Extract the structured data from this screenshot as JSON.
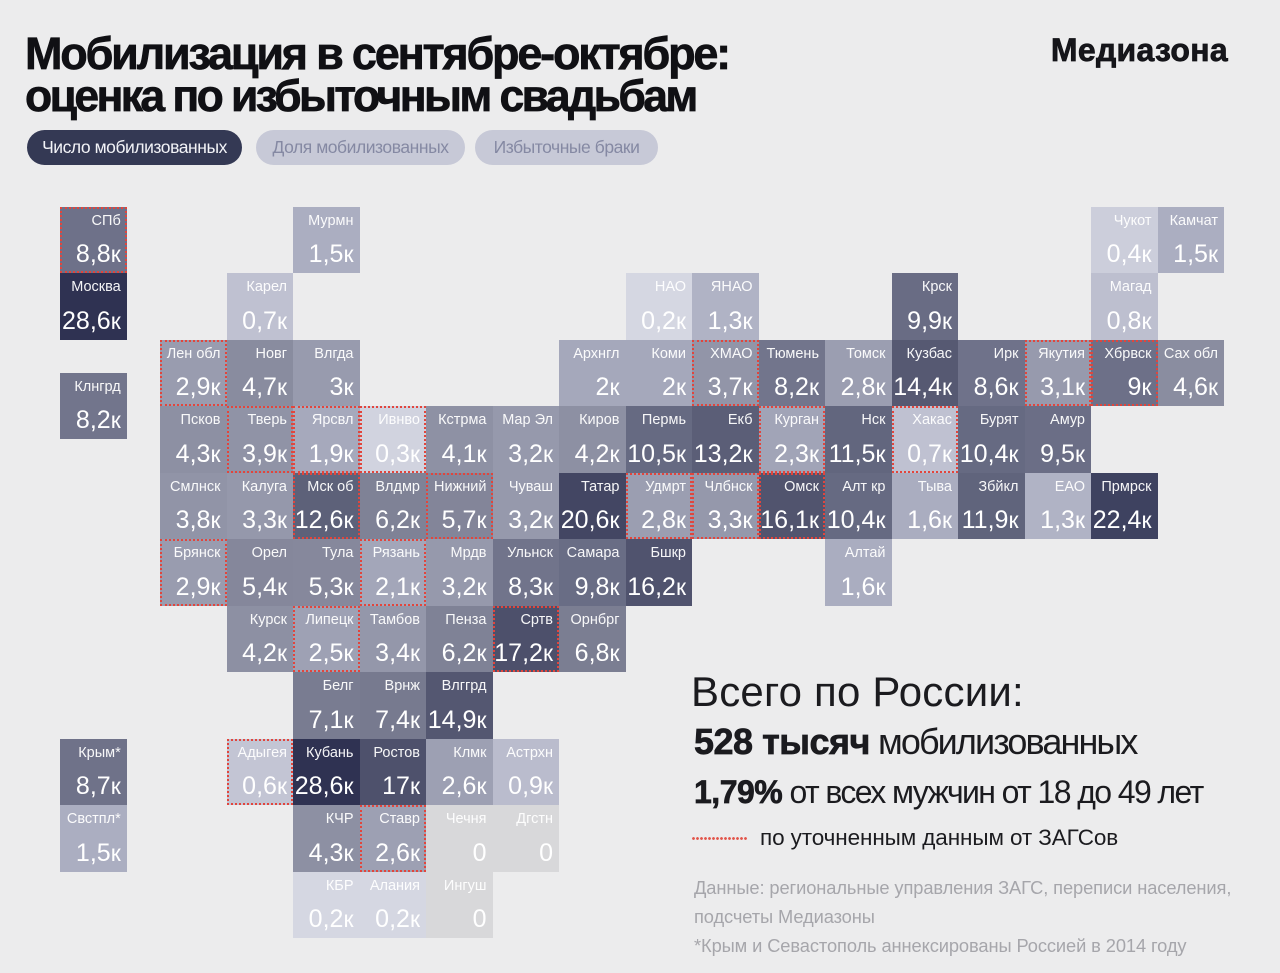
{
  "header": {
    "title_line1": "Мобилизация в сентябре-октябре:",
    "title_line2": "оценка по избыточным свадьбам",
    "logo": "Медиазона"
  },
  "tabs": [
    {
      "label": "Число мобилизованных",
      "active": true
    },
    {
      "label": "Доля мобилизованных",
      "active": false
    },
    {
      "label": "Избыточные браки",
      "active": false
    }
  ],
  "summary": {
    "title": "Всего по России:",
    "total_bold": "528 тысяч",
    "total_rest": " мобилизованных",
    "share_bold": "1,79%",
    "share_rest": " от всех мужчин от 18 до 49 лет",
    "zags_legend": "по уточненным данным от ЗАГСов"
  },
  "footnote": {
    "lines": [
      "Данные: региональные управления ЗАГС, переписи населения,",
      "подсчеты Медиазоны",
      "*Крым и Севастополь аннексированы Россией в 2014 году"
    ]
  },
  "colors": {
    "background": "#ececed",
    "tab_active_bg": "#343954",
    "tab_active_text": "#f2f3f7",
    "tab_inactive_bg": "#c7c9d7",
    "tab_inactive_text": "#8589a3",
    "refined_border": "#e2453c",
    "zero_tile": "#d8d8da",
    "tile_text": "#ffffff"
  },
  "chart_data": {
    "type": "tile-cartogram",
    "title": "Мобилизация в сентябре-октябре: оценка по избыточным свадьбам",
    "unit_suffix": "к",
    "value_scale_anchors": [
      [
        0.2,
        "#d5d7e2"
      ],
      [
        0.7,
        "#bfc1d1"
      ],
      [
        1.5,
        "#abaec1"
      ],
      [
        3.0,
        "#989bae"
      ],
      [
        4.7,
        "#898c9f"
      ],
      [
        5.4,
        "#85879b"
      ],
      [
        6.8,
        "#7b7e92"
      ],
      [
        8.8,
        "#6e7189"
      ],
      [
        10.5,
        "#666a82"
      ],
      [
        14.4,
        "#565972"
      ],
      [
        20.6,
        "#434663"
      ],
      [
        22.4,
        "#3e4260"
      ],
      [
        28.6,
        "#2f3252"
      ]
    ],
    "regions": [
      {
        "name": "СПб",
        "value": "8,8к",
        "num": 8.8,
        "row": 0,
        "col": -1.5,
        "refined": true
      },
      {
        "name": "Мурмн",
        "value": "1,5к",
        "num": 1.5,
        "row": 0,
        "col": 2,
        "refined": false
      },
      {
        "name": "Чукот",
        "value": "0,4к",
        "num": 0.4,
        "row": 0,
        "col": 14,
        "refined": false
      },
      {
        "name": "Камчат",
        "value": "1,5к",
        "num": 1.5,
        "row": 0,
        "col": 15,
        "refined": false
      },
      {
        "name": "Москва",
        "value": "28,6к",
        "num": 28.6,
        "row": 1,
        "col": -1.5,
        "refined": false
      },
      {
        "name": "Карел",
        "value": "0,7к",
        "num": 0.7,
        "row": 1,
        "col": 1,
        "refined": false
      },
      {
        "name": "НАО",
        "value": "0,2к",
        "num": 0.2,
        "row": 1,
        "col": 7,
        "refined": false
      },
      {
        "name": "ЯНАО",
        "value": "1,3к",
        "num": 1.3,
        "row": 1,
        "col": 8,
        "refined": false
      },
      {
        "name": "Крск",
        "value": "9,9к",
        "num": 9.9,
        "row": 1,
        "col": 11,
        "refined": false
      },
      {
        "name": "Магад",
        "value": "0,8к",
        "num": 0.8,
        "row": 1,
        "col": 14,
        "refined": false
      },
      {
        "name": "Лен обл",
        "value": "2,9к",
        "num": 2.9,
        "row": 2,
        "col": 0,
        "refined": true
      },
      {
        "name": "Новг",
        "value": "4,7к",
        "num": 4.7,
        "row": 2,
        "col": 1,
        "refined": false
      },
      {
        "name": "Влгда",
        "value": "3к",
        "num": 3.0,
        "row": 2,
        "col": 2,
        "refined": false
      },
      {
        "name": "Архнгл",
        "value": "2к",
        "num": 2.0,
        "row": 2,
        "col": 6,
        "refined": false
      },
      {
        "name": "Коми",
        "value": "2к",
        "num": 2.0,
        "row": 2,
        "col": 7,
        "refined": false
      },
      {
        "name": "ХМАО",
        "value": "3,7к",
        "num": 3.7,
        "row": 2,
        "col": 8,
        "refined": true
      },
      {
        "name": "Тюмень",
        "value": "8,2к",
        "num": 8.2,
        "row": 2,
        "col": 9,
        "refined": false
      },
      {
        "name": "Томск",
        "value": "2,8к",
        "num": 2.8,
        "row": 2,
        "col": 10,
        "refined": false
      },
      {
        "name": "Кузбас",
        "value": "14,4к",
        "num": 14.4,
        "row": 2,
        "col": 11,
        "refined": false
      },
      {
        "name": "Ирк",
        "value": "8,6к",
        "num": 8.6,
        "row": 2,
        "col": 12,
        "refined": false
      },
      {
        "name": "Якутия",
        "value": "3,1к",
        "num": 3.1,
        "row": 2,
        "col": 13,
        "refined": true
      },
      {
        "name": "Хбрвск",
        "value": "9к",
        "num": 9.0,
        "row": 2,
        "col": 14,
        "refined": true
      },
      {
        "name": "Сах обл",
        "value": "4,6к",
        "num": 4.6,
        "row": 2,
        "col": 15,
        "refined": false
      },
      {
        "name": "Псков",
        "value": "4,3к",
        "num": 4.3,
        "row": 3,
        "col": 0,
        "refined": false
      },
      {
        "name": "Тверь",
        "value": "3,9к",
        "num": 3.9,
        "row": 3,
        "col": 1,
        "refined": true
      },
      {
        "name": "Ярсвл",
        "value": "1,9к",
        "num": 1.9,
        "row": 3,
        "col": 2,
        "refined": true
      },
      {
        "name": "Ивнво",
        "value": "0,3к",
        "num": 0.3,
        "row": 3,
        "col": 3,
        "refined": true
      },
      {
        "name": "Кстрма",
        "value": "4,1к",
        "num": 4.1,
        "row": 3,
        "col": 4,
        "refined": false
      },
      {
        "name": "Мар Эл",
        "value": "3,2к",
        "num": 3.2,
        "row": 3,
        "col": 5,
        "refined": false
      },
      {
        "name": "Киров",
        "value": "4,2к",
        "num": 4.2,
        "row": 3,
        "col": 6,
        "refined": false
      },
      {
        "name": "Пермь",
        "value": "10,5к",
        "num": 10.5,
        "row": 3,
        "col": 7,
        "refined": false
      },
      {
        "name": "Екб",
        "value": "13,2к",
        "num": 13.2,
        "row": 3,
        "col": 8,
        "refined": false
      },
      {
        "name": "Курган",
        "value": "2,3к",
        "num": 2.3,
        "row": 3,
        "col": 9,
        "refined": true
      },
      {
        "name": "Нск",
        "value": "11,5к",
        "num": 11.5,
        "row": 3,
        "col": 10,
        "refined": false
      },
      {
        "name": "Хакас",
        "value": "0,7к",
        "num": 0.7,
        "row": 3,
        "col": 11,
        "refined": true
      },
      {
        "name": "Бурят",
        "value": "10,4к",
        "num": 10.4,
        "row": 3,
        "col": 12,
        "refined": false
      },
      {
        "name": "Амур",
        "value": "9,5к",
        "num": 9.5,
        "row": 3,
        "col": 13,
        "refined": false
      },
      {
        "name": "Клнгрд",
        "value": "8,2к",
        "num": 8.2,
        "row": 2.5,
        "col": -1.5,
        "refined": false
      },
      {
        "name": "Смлнск",
        "value": "3,8к",
        "num": 3.8,
        "row": 4,
        "col": 0,
        "refined": false
      },
      {
        "name": "Калуга",
        "value": "3,3к",
        "num": 3.3,
        "row": 4,
        "col": 1,
        "refined": false
      },
      {
        "name": "Мск об",
        "value": "12,6к",
        "num": 12.6,
        "row": 4,
        "col": 2,
        "refined": true
      },
      {
        "name": "Влдмр",
        "value": "6,2к",
        "num": 6.2,
        "row": 4,
        "col": 3,
        "refined": false
      },
      {
        "name": "Нижний",
        "value": "5,7к",
        "num": 5.7,
        "row": 4,
        "col": 4,
        "refined": true
      },
      {
        "name": "Чуваш",
        "value": "3,2к",
        "num": 3.2,
        "row": 4,
        "col": 5,
        "refined": false
      },
      {
        "name": "Татар",
        "value": "20,6к",
        "num": 20.6,
        "row": 4,
        "col": 6,
        "refined": false
      },
      {
        "name": "Удмрт",
        "value": "2,8к",
        "num": 2.8,
        "row": 4,
        "col": 7,
        "refined": true
      },
      {
        "name": "Члбнск",
        "value": "3,3к",
        "num": 3.3,
        "row": 4,
        "col": 8,
        "refined": true
      },
      {
        "name": "Омск",
        "value": "16,1к",
        "num": 16.1,
        "row": 4,
        "col": 9,
        "refined": true
      },
      {
        "name": "Алт кр",
        "value": "10,4к",
        "num": 10.4,
        "row": 4,
        "col": 10,
        "refined": false
      },
      {
        "name": "Тыва",
        "value": "1,6к",
        "num": 1.6,
        "row": 4,
        "col": 11,
        "refined": false
      },
      {
        "name": "Збйкл",
        "value": "11,9к",
        "num": 11.9,
        "row": 4,
        "col": 12,
        "refined": false
      },
      {
        "name": "ЕАО",
        "value": "1,3к",
        "num": 1.3,
        "row": 4,
        "col": 13,
        "refined": false
      },
      {
        "name": "Прмрск",
        "value": "22,4к",
        "num": 22.4,
        "row": 4,
        "col": 14,
        "refined": false
      },
      {
        "name": "Брянск",
        "value": "2,9к",
        "num": 2.9,
        "row": 5,
        "col": 0,
        "refined": true
      },
      {
        "name": "Орел",
        "value": "5,4к",
        "num": 5.4,
        "row": 5,
        "col": 1,
        "refined": false
      },
      {
        "name": "Тула",
        "value": "5,3к",
        "num": 5.3,
        "row": 5,
        "col": 2,
        "refined": false
      },
      {
        "name": "Рязань",
        "value": "2,1к",
        "num": 2.1,
        "row": 5,
        "col": 3,
        "refined": true
      },
      {
        "name": "Мрдв",
        "value": "3,2к",
        "num": 3.2,
        "row": 5,
        "col": 4,
        "refined": false
      },
      {
        "name": "Ульнск",
        "value": "8,3к",
        "num": 8.3,
        "row": 5,
        "col": 5,
        "refined": false
      },
      {
        "name": "Самара",
        "value": "9,8к",
        "num": 9.8,
        "row": 5,
        "col": 6,
        "refined": false
      },
      {
        "name": "Бшкр",
        "value": "16,2к",
        "num": 16.2,
        "row": 5,
        "col": 7,
        "refined": false
      },
      {
        "name": "Алтай",
        "value": "1,6к",
        "num": 1.6,
        "row": 5,
        "col": 10,
        "refined": false
      },
      {
        "name": "Курск",
        "value": "4,2к",
        "num": 4.2,
        "row": 6,
        "col": 1,
        "refined": false
      },
      {
        "name": "Липецк",
        "value": "2,5к",
        "num": 2.5,
        "row": 6,
        "col": 2,
        "refined": true
      },
      {
        "name": "Тамбов",
        "value": "3,4к",
        "num": 3.4,
        "row": 6,
        "col": 3,
        "refined": false
      },
      {
        "name": "Пенза",
        "value": "6,2к",
        "num": 6.2,
        "row": 6,
        "col": 4,
        "refined": false
      },
      {
        "name": "Сртв",
        "value": "17,2к",
        "num": 17.2,
        "row": 6,
        "col": 5,
        "refined": true
      },
      {
        "name": "Орнбрг",
        "value": "6,8к",
        "num": 6.8,
        "row": 6,
        "col": 6,
        "refined": false
      },
      {
        "name": "Белг",
        "value": "7,1к",
        "num": 7.1,
        "row": 7,
        "col": 2,
        "refined": false
      },
      {
        "name": "Врнж",
        "value": "7,4к",
        "num": 7.4,
        "row": 7,
        "col": 3,
        "refined": false
      },
      {
        "name": "Влггрд",
        "value": "14,9к",
        "num": 14.9,
        "row": 7,
        "col": 4,
        "refined": false
      },
      {
        "name": "Крым*",
        "value": "8,7к",
        "num": 8.7,
        "row": 8,
        "col": -1.5,
        "refined": false
      },
      {
        "name": "Адыгея",
        "value": "0,6к",
        "num": 0.6,
        "row": 8,
        "col": 1,
        "refined": true
      },
      {
        "name": "Кубань",
        "value": "28,6к",
        "num": 28.6,
        "row": 8,
        "col": 2,
        "refined": false
      },
      {
        "name": "Ростов",
        "value": "17к",
        "num": 17.0,
        "row": 8,
        "col": 3,
        "refined": false
      },
      {
        "name": "Клмк",
        "value": "2,6к",
        "num": 2.6,
        "row": 8,
        "col": 4,
        "refined": false
      },
      {
        "name": "Астрхн",
        "value": "0,9к",
        "num": 0.9,
        "row": 8,
        "col": 5,
        "refined": false
      },
      {
        "name": "Свстпл*",
        "value": "1,5к",
        "num": 1.5,
        "row": 9,
        "col": -1.5,
        "refined": false
      },
      {
        "name": "КЧР",
        "value": "4,3к",
        "num": 4.3,
        "row": 9,
        "col": 2,
        "refined": false
      },
      {
        "name": "Ставр",
        "value": "2,6к",
        "num": 2.6,
        "row": 9,
        "col": 3,
        "refined": true
      },
      {
        "name": "Чечня",
        "value": "0",
        "num": 0,
        "row": 9,
        "col": 4,
        "refined": false
      },
      {
        "name": "Дгстн",
        "value": "0",
        "num": 0,
        "row": 9,
        "col": 5,
        "refined": false
      },
      {
        "name": "КБР",
        "value": "0,2к",
        "num": 0.2,
        "row": 10,
        "col": 2,
        "refined": false
      },
      {
        "name": "Алания",
        "value": "0,2к",
        "num": 0.2,
        "row": 10,
        "col": 3,
        "refined": false
      },
      {
        "name": "Ингуш",
        "value": "0",
        "num": 0,
        "row": 10,
        "col": 4,
        "refined": false
      }
    ]
  }
}
